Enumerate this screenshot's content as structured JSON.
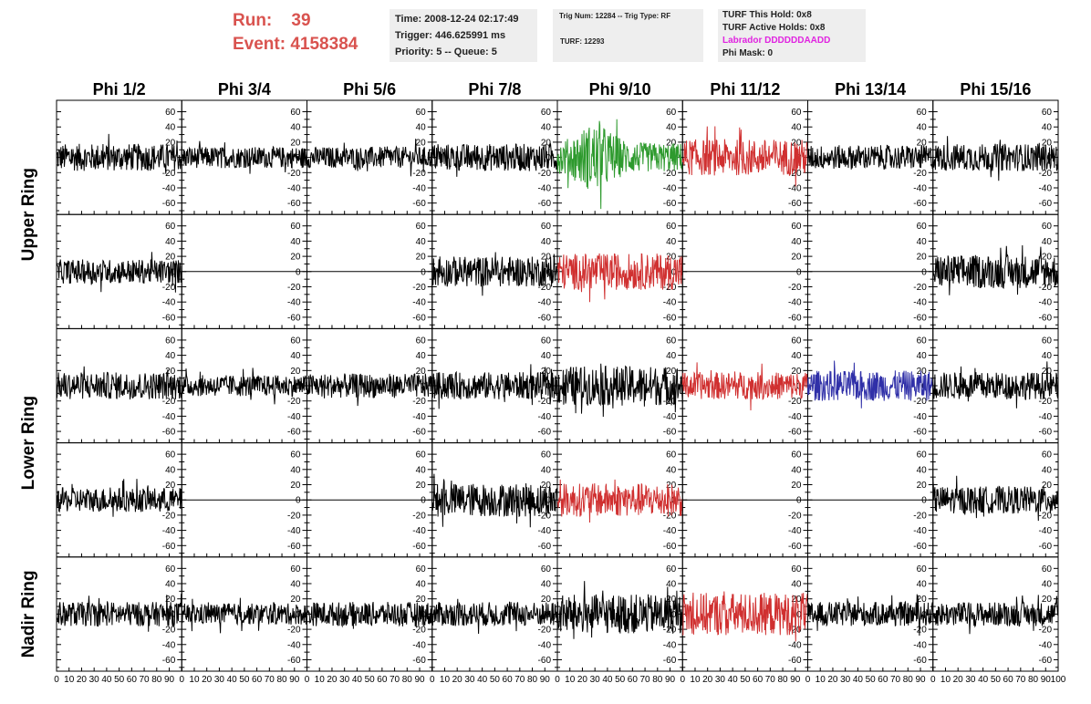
{
  "header": {
    "run_label": "Run:",
    "run_value": "39",
    "event_label": "Event:",
    "event_value": "4158384",
    "time": "Time: 2008-12-24 02:17:49",
    "trigger": "Trigger: 446.625991 ms",
    "priority": "Priority: 5 -- Queue: 5",
    "trig_num": "Trig Num: 12284 -- Trig Type: RF",
    "turf": "TURF: 12293",
    "turf_this_hold": "TURF This Hold: 0x8",
    "turf_active_holds": "TURF Active Holds: 0x8",
    "labrador": "Labrador DDDDDDAADD",
    "phi_mask": "Phi Mask: 0"
  },
  "colors": {
    "run_text": "#d9534f",
    "labrador_text": "#e024e0",
    "trace_default": "#000000",
    "trace_green": "#2e9a2e",
    "trace_red": "#d03030",
    "trace_blue": "#3030a8"
  },
  "chart_data": {
    "type": "line",
    "column_labels": [
      "Phi 1/2",
      "Phi 3/4",
      "Phi 5/6",
      "Phi 7/8",
      "Phi 9/10",
      "Phi 11/12",
      "Phi 13/14",
      "Phi 15/16"
    ],
    "ring_labels": [
      {
        "label": "Upper Ring",
        "rows": [
          0,
          1
        ]
      },
      {
        "label": "Lower Ring",
        "rows": [
          2,
          3
        ]
      },
      {
        "label": "Nadir Ring",
        "rows": [
          4,
          4
        ]
      }
    ],
    "xlim": [
      0,
      100
    ],
    "ylim": [
      -75,
      75
    ],
    "x_ticks": [
      "0",
      "10",
      "20",
      "30",
      "40",
      "50",
      "60",
      "70",
      "80",
      "90",
      "100"
    ],
    "y_ticks": [
      "-60",
      "-40",
      "-20",
      "0",
      "20",
      "40",
      "60"
    ],
    "y_tick_values": [
      -60,
      -40,
      -20,
      0,
      20,
      40,
      60
    ],
    "x_tick_values": [
      0,
      10,
      20,
      30,
      40,
      50,
      60,
      70,
      80,
      90,
      100
    ],
    "panels": [
      [
        {
          "color": "black",
          "amp": 18,
          "flat": false
        },
        {
          "color": "black",
          "amp": 14,
          "flat": false
        },
        {
          "color": "black",
          "amp": 14,
          "flat": false
        },
        {
          "color": "black",
          "amp": 18,
          "flat": false
        },
        {
          "color": "green",
          "amp": 32,
          "flat": false
        },
        {
          "color": "red",
          "amp": 24,
          "flat": false
        },
        {
          "color": "black",
          "amp": 16,
          "flat": false
        },
        {
          "color": "black",
          "amp": 18,
          "flat": false
        }
      ],
      [
        {
          "color": "black",
          "amp": 16,
          "flat": false
        },
        {
          "color": "black",
          "amp": 0,
          "flat": true
        },
        {
          "color": "black",
          "amp": 0,
          "flat": true
        },
        {
          "color": "black",
          "amp": 20,
          "flat": false
        },
        {
          "color": "red",
          "amp": 24,
          "flat": false
        },
        {
          "color": "black",
          "amp": 0,
          "flat": true
        },
        {
          "color": "black",
          "amp": 0,
          "flat": true
        },
        {
          "color": "black",
          "amp": 22,
          "flat": false
        }
      ],
      [
        {
          "color": "black",
          "amp": 18,
          "flat": false
        },
        {
          "color": "black",
          "amp": 14,
          "flat": false
        },
        {
          "color": "black",
          "amp": 16,
          "flat": false
        },
        {
          "color": "black",
          "amp": 18,
          "flat": false
        },
        {
          "color": "black",
          "amp": 26,
          "flat": false
        },
        {
          "color": "red",
          "amp": 18,
          "flat": false
        },
        {
          "color": "blue",
          "amp": 20,
          "flat": false
        },
        {
          "color": "black",
          "amp": 18,
          "flat": false
        }
      ],
      [
        {
          "color": "black",
          "amp": 16,
          "flat": false
        },
        {
          "color": "black",
          "amp": 0,
          "flat": true
        },
        {
          "color": "black",
          "amp": 0,
          "flat": true
        },
        {
          "color": "black",
          "amp": 22,
          "flat": false
        },
        {
          "color": "red",
          "amp": 22,
          "flat": false
        },
        {
          "color": "black",
          "amp": 0,
          "flat": true
        },
        {
          "color": "black",
          "amp": 0,
          "flat": true
        },
        {
          "color": "black",
          "amp": 18,
          "flat": false
        }
      ],
      [
        {
          "color": "black",
          "amp": 16,
          "flat": false
        },
        {
          "color": "black",
          "amp": 14,
          "flat": false
        },
        {
          "color": "black",
          "amp": 16,
          "flat": false
        },
        {
          "color": "black",
          "amp": 16,
          "flat": false
        },
        {
          "color": "black",
          "amp": 26,
          "flat": false
        },
        {
          "color": "red",
          "amp": 28,
          "flat": false
        },
        {
          "color": "black",
          "amp": 16,
          "flat": false
        },
        {
          "color": "black",
          "amp": 16,
          "flat": false
        }
      ]
    ]
  }
}
